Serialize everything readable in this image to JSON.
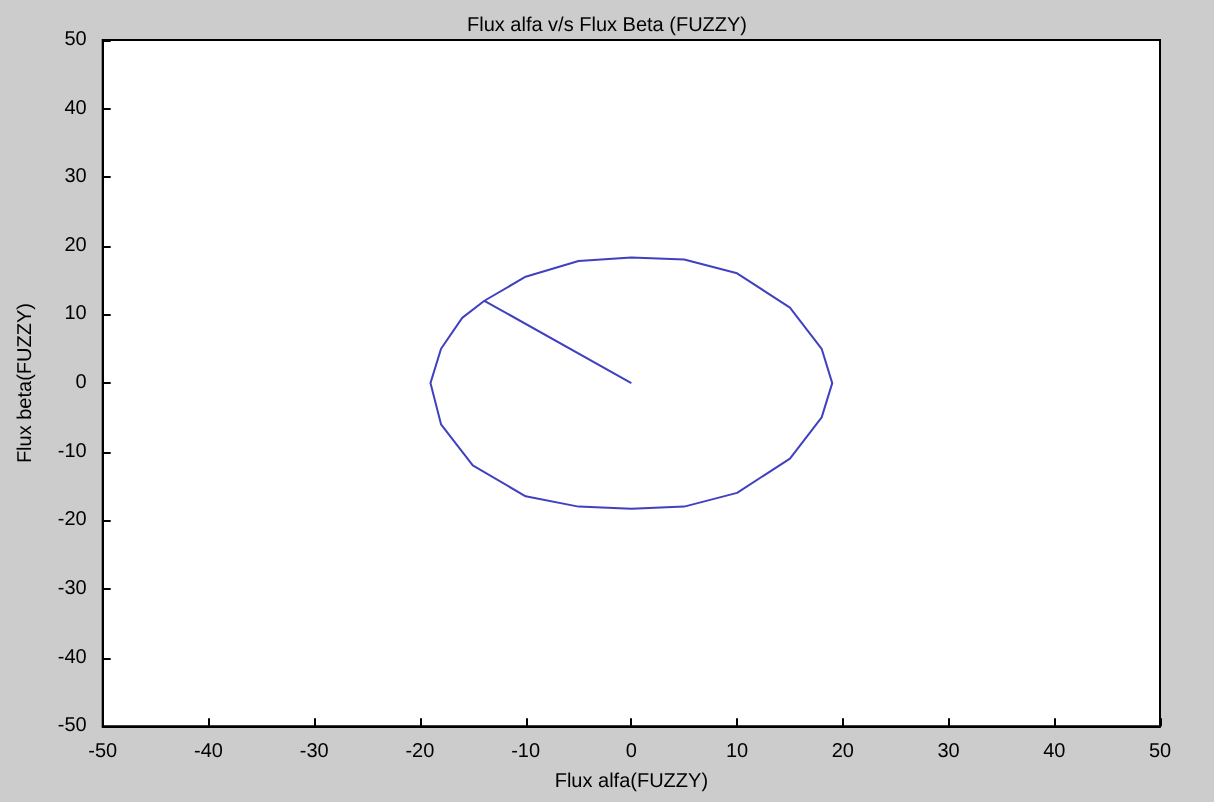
{
  "chart_data": {
    "type": "line",
    "title": "Flux alfa v/s Flux Beta (FUZZY)",
    "xlabel": "Flux alfa(FUZZY)",
    "ylabel": "Flux beta(FUZZY)",
    "x": [
      0,
      -13.9,
      -10,
      -5,
      0,
      5,
      10,
      15,
      18,
      19,
      18,
      15,
      10,
      5,
      0,
      -5,
      -10,
      -15,
      -18,
      -19,
      -18,
      -16,
      -13.9
    ],
    "series": [
      {
        "color": "#4040c0",
        "values": [
          0,
          12,
          15.5,
          17.8,
          18.3,
          18,
          16,
          11,
          5,
          0,
          -5,
          -11,
          -16,
          -18,
          -18.3,
          -18,
          -16.5,
          -12,
          -6,
          0,
          5,
          9.5,
          12
        ]
      }
    ],
    "xlim": [
      -50,
      50
    ],
    "xticks": [
      -50,
      -40,
      -30,
      -20,
      -10,
      0,
      10,
      20,
      30,
      40,
      50
    ],
    "ylim": [
      -50,
      50
    ],
    "yticks": [
      -50,
      -40,
      -30,
      -20,
      -10,
      0,
      10,
      20,
      30,
      40,
      50
    ],
    "grid": false,
    "marker": "none",
    "line_style": "solid"
  }
}
